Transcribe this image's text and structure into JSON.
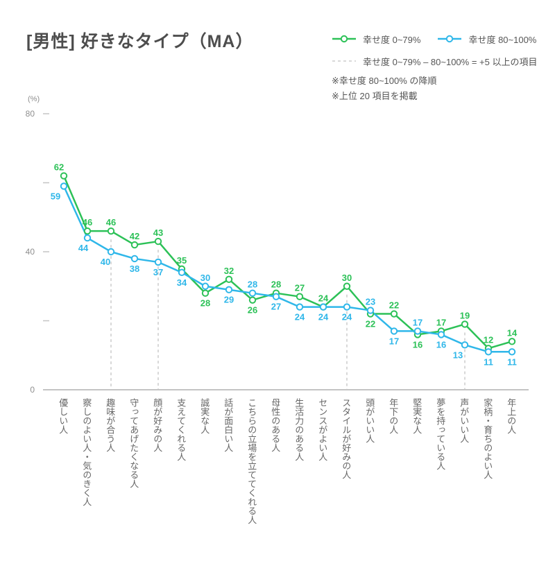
{
  "chart_data": {
    "type": "line",
    "title": "[男性] 好きなタイプ（MA）",
    "ylabel": "(%)",
    "ylim": [
      0,
      80
    ],
    "grid": false,
    "legend_position": "top-right",
    "yticks": [
      {
        "value": 80,
        "label": "80"
      },
      {
        "value": 60,
        "label": ""
      },
      {
        "value": 40,
        "label": "40"
      },
      {
        "value": 20,
        "label": ""
      },
      {
        "value": 0,
        "label": "0"
      }
    ],
    "categories": [
      "優しい人",
      "察しのよい人・気のきく人",
      "趣味が合う人",
      "守ってあげたくなる人",
      "顔が好みの人",
      "支えてくれる人",
      "誠実な人",
      "話が面白い人",
      "こちらの立場を立ててくれる人",
      "母性のある人",
      "生活力のある人",
      "センスがよい人",
      "スタイルが好みの人",
      "頭がいい人",
      "年下の人",
      "堅実な人",
      "夢を持っている人",
      "声がいい人",
      "家柄・育ちのよい人",
      "年上の人"
    ],
    "series": [
      {
        "name": "幸せ度 0~79%",
        "color": "#2cc157",
        "values": [
          62,
          46,
          46,
          42,
          43,
          35,
          28,
          32,
          26,
          28,
          27,
          24,
          30,
          22,
          22,
          16,
          17,
          19,
          12,
          14
        ]
      },
      {
        "name": "幸せ度 80~100%",
        "color": "#2fb7e9",
        "values": [
          59,
          44,
          40,
          38,
          37,
          34,
          30,
          29,
          28,
          27,
          24,
          24,
          24,
          23,
          17,
          17,
          16,
          13,
          11,
          11
        ]
      }
    ],
    "diff_rule": {
      "label": "幸せ度 0~79% – 80~100% = +5 以上の項目",
      "highlight_indices": [
        2,
        4,
        12,
        17
      ],
      "line_color": "#cccccc"
    },
    "notes": [
      "※幸せ度 80~100% の降順",
      "※上位 20 項目を掲載"
    ],
    "axis_color": "#b0b0b0",
    "tick_color": "#c4c4c4",
    "tick_label_color": "#8e8e8e"
  }
}
